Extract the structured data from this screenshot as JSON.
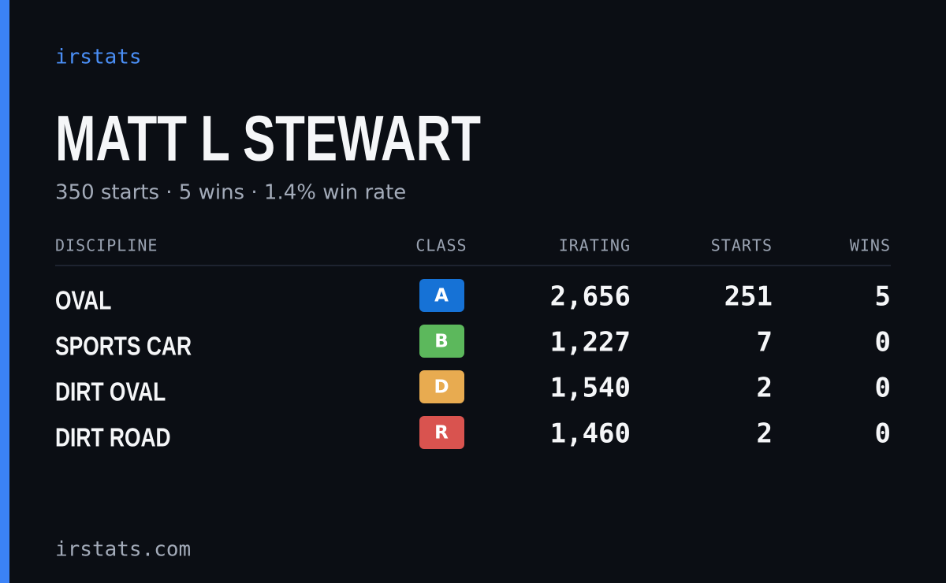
{
  "brand": "irstats",
  "driver": {
    "name": "MATT L STEWART",
    "summary": "350 starts · 5 wins · 1.4% win rate"
  },
  "table": {
    "headers": {
      "discipline": "DISCIPLINE",
      "class": "CLASS",
      "irating": "IRATING",
      "starts": "STARTS",
      "wins": "WINS"
    },
    "rows": [
      {
        "discipline": "OVAL",
        "class": "A",
        "class_color": "#1672d6",
        "irating": "2,656",
        "starts": 251,
        "wins": 5
      },
      {
        "discipline": "SPORTS CAR",
        "class": "B",
        "class_color": "#5cb85c",
        "irating": "1,227",
        "starts": 7,
        "wins": 0
      },
      {
        "discipline": "DIRT OVAL",
        "class": "D",
        "class_color": "#e8ab50",
        "irating": "1,540",
        "starts": 2,
        "wins": 0
      },
      {
        "discipline": "DIRT ROAD",
        "class": "R",
        "class_color": "#d9534f",
        "irating": "1,460",
        "starts": 2,
        "wins": 0
      }
    ]
  },
  "footer": "irstats.com"
}
